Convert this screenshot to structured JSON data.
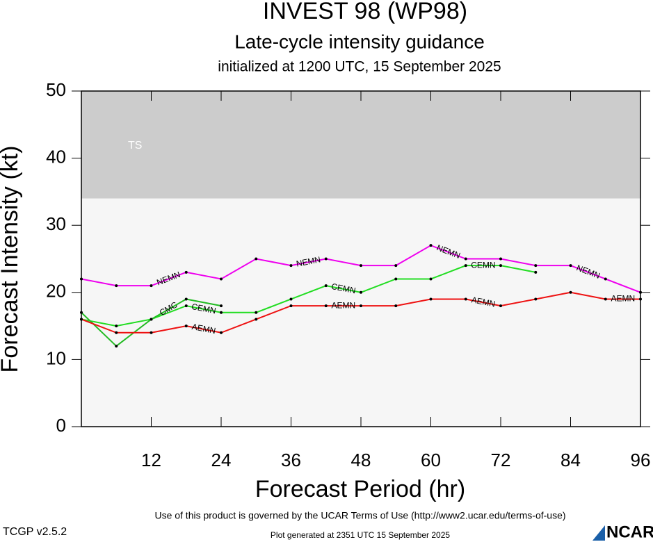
{
  "chart_data": {
    "type": "line",
    "title": "INVEST 98 (WP98)",
    "subtitle": "Late-cycle intensity guidance",
    "initialized": "initialized at 1200 UTC, 15 September 2025",
    "x_label": "Forecast Period (hr)",
    "y_label": "Forecast Intensity (kt)",
    "x": [
      0,
      6,
      12,
      18,
      24,
      30,
      36,
      42,
      48,
      54,
      60,
      66,
      72,
      78,
      84,
      90,
      96
    ],
    "series": [
      {
        "name": "NEMN",
        "color": "#ee00ee",
        "values": [
          22,
          21,
          21,
          23,
          22,
          25,
          24,
          25,
          24,
          24,
          27,
          25,
          25,
          24,
          24,
          22,
          20
        ]
      },
      {
        "name": "CEMN",
        "color": "#22dd22",
        "values": [
          16,
          15,
          16,
          18,
          17,
          17,
          19,
          21,
          20,
          22,
          22,
          24,
          24,
          23,
          null,
          null,
          null
        ]
      },
      {
        "name": "CMC",
        "color": "#22bb22",
        "values": [
          17,
          12,
          16,
          19,
          18,
          null,
          null,
          null,
          null,
          null,
          null,
          null,
          null,
          null,
          null,
          null,
          null
        ]
      },
      {
        "name": "AEMN",
        "color": "#ee1111",
        "values": [
          16,
          14,
          14,
          15,
          14,
          16,
          18,
          18,
          18,
          18,
          19,
          19,
          18,
          19,
          20,
          19,
          19
        ]
      }
    ],
    "xlim": [
      0,
      96
    ],
    "xticks": [
      12,
      24,
      36,
      48,
      60,
      72,
      84,
      96
    ],
    "ylim": [
      0,
      50
    ],
    "yticks": [
      0,
      10,
      20,
      30,
      40,
      50
    ],
    "band": {
      "label": "TS",
      "from": 34,
      "to": 50
    },
    "terms": "Use of this product is governed by the UCAR Terms of Use (http://www2.ucar.edu/terms-of-use)",
    "version": "TCGP v2.5.2",
    "generated": "Plot generated at 2351 UTC   15 September 2025",
    "logo": "NCAR"
  }
}
